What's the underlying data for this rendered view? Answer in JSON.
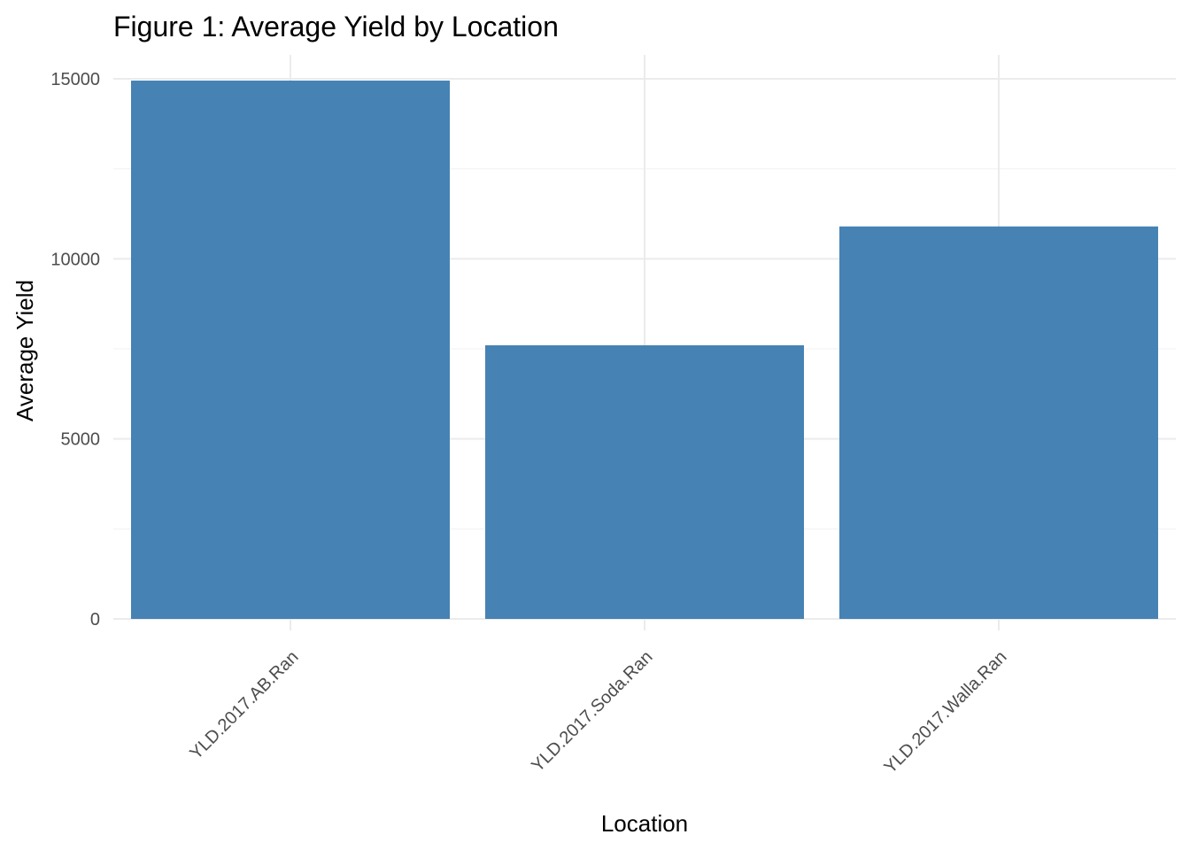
{
  "chart_data": {
    "type": "bar",
    "title": "Figure 1: Average Yield by Location",
    "xlabel": "Location",
    "ylabel": "Average Yield",
    "categories": [
      "YLD.2017.AB.Ran",
      "YLD.2017.Soda.Ran",
      "YLD.2017.Walla.Ran"
    ],
    "values": [
      14950,
      7600,
      10900
    ],
    "ylim": [
      0,
      15700
    ],
    "yticks": [
      0,
      5000,
      10000,
      15000
    ],
    "grid": true,
    "legend": "none",
    "bar_color": "#4682b4",
    "x_tick_rotation_deg": 45
  }
}
